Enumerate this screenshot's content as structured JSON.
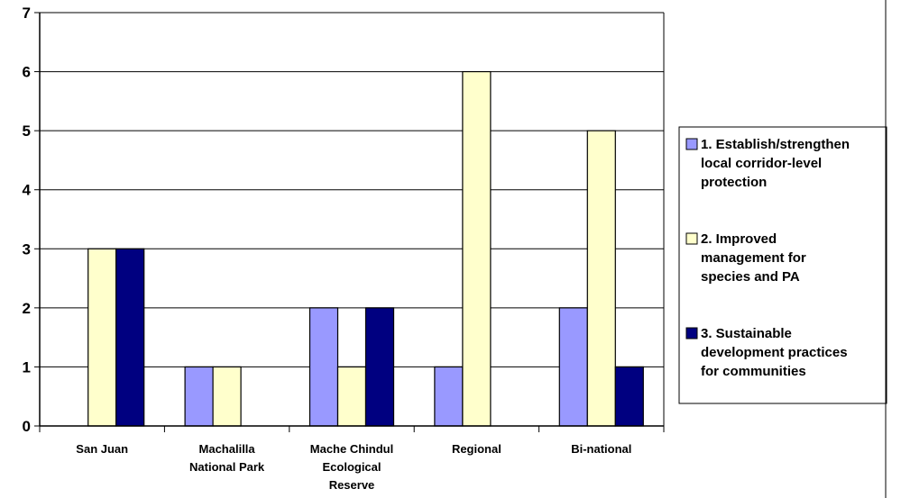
{
  "chart_data": {
    "type": "bar",
    "categories": [
      [
        "San Juan"
      ],
      [
        "Machalilla",
        "National Park"
      ],
      [
        "Mache Chindul",
        "Ecological",
        "Reserve"
      ],
      [
        "Regional"
      ],
      [
        "Bi-national"
      ]
    ],
    "series": [
      {
        "name": [
          "1. Establish/strengthen",
          "local corridor-level",
          "protection"
        ],
        "color": "#9999ff",
        "values": [
          0,
          1,
          2,
          1,
          2
        ]
      },
      {
        "name": [
          "2. Improved",
          "management for",
          "species and PA"
        ],
        "color": "#ffffcc",
        "values": [
          3,
          1,
          1,
          6,
          5
        ]
      },
      {
        "name": [
          "3. Sustainable",
          "development practices",
          "for communities"
        ],
        "color": "#000080",
        "values": [
          3,
          0,
          2,
          0,
          1
        ]
      }
    ],
    "yticks": [
      "0",
      "1",
      "2",
      "3",
      "4",
      "5",
      "6",
      "7"
    ],
    "ylim": [
      0,
      7
    ],
    "grid": true,
    "legend_position": "right"
  }
}
